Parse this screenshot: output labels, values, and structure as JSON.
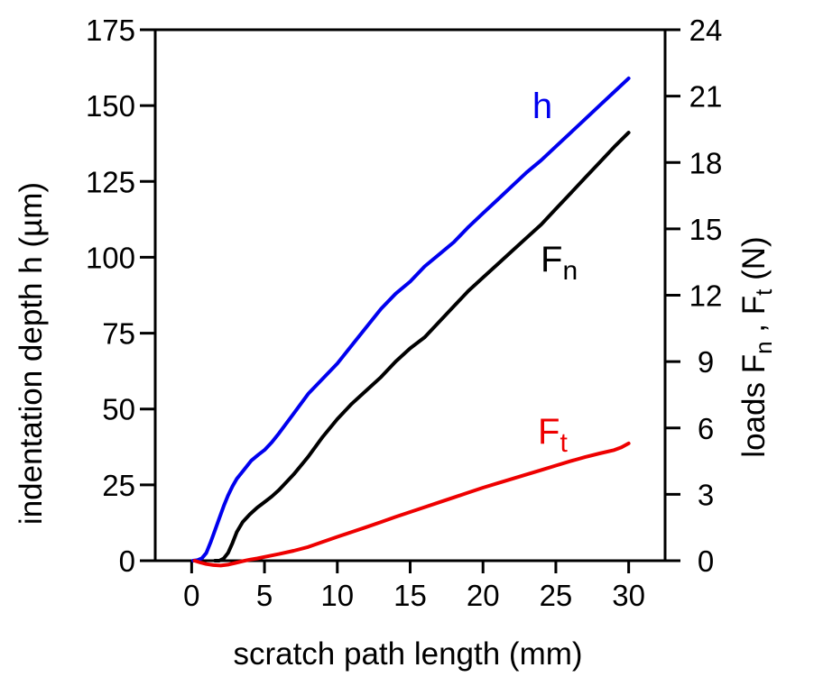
{
  "figure": {
    "background": "#ffffff",
    "axis_color": "#000000"
  },
  "chart_data": {
    "type": "line",
    "title": "",
    "xlabel": "scratch path length (mm)",
    "ylabel_left": "indentation depth  h (µm)",
    "ylabel_right_runs": [
      {
        "t": "loads F"
      },
      {
        "t": "n",
        "sub": true
      },
      {
        "t": " , F"
      },
      {
        "t": "t",
        "sub": true
      },
      {
        "t": "  (N)"
      }
    ],
    "x_axis": {
      "min": -2.5,
      "max": 32.5,
      "ticks": [
        0,
        5,
        10,
        15,
        20,
        25,
        30
      ],
      "grid": false
    },
    "y_axis_left": {
      "min": 0,
      "max": 175,
      "ticks": [
        0,
        25,
        50,
        75,
        100,
        125,
        150,
        175
      ],
      "grid": false
    },
    "y_axis_right": {
      "min": 0,
      "max": 24,
      "ticks": [
        0,
        3,
        6,
        9,
        12,
        15,
        18,
        21,
        24
      ],
      "grid": false
    },
    "legend": "inline curve labels",
    "series": [
      {
        "name": "h",
        "axis": "left",
        "unit": "µm",
        "color": "#0000ee",
        "label_runs": [
          {
            "t": "h"
          }
        ],
        "points": [
          [
            0.1,
            0
          ],
          [
            0.4,
            0.2
          ],
          [
            0.7,
            0.8
          ],
          [
            1.0,
            2.5
          ],
          [
            1.3,
            6
          ],
          [
            1.6,
            10
          ],
          [
            1.9,
            14
          ],
          [
            2.2,
            18
          ],
          [
            2.5,
            21.5
          ],
          [
            2.8,
            24.5
          ],
          [
            3.1,
            27
          ],
          [
            3.6,
            30
          ],
          [
            4.1,
            33
          ],
          [
            4.6,
            35
          ],
          [
            5,
            36.5
          ],
          [
            5.5,
            39
          ],
          [
            6,
            42
          ],
          [
            7,
            48.5
          ],
          [
            8,
            55
          ],
          [
            9,
            60
          ],
          [
            10,
            65
          ],
          [
            11,
            71
          ],
          [
            12,
            77
          ],
          [
            13,
            83
          ],
          [
            14,
            88
          ],
          [
            15,
            92
          ],
          [
            16,
            97
          ],
          [
            17,
            101
          ],
          [
            18,
            105
          ],
          [
            19,
            110
          ],
          [
            20,
            114.5
          ],
          [
            21,
            119
          ],
          [
            22,
            123.5
          ],
          [
            23,
            128
          ],
          [
            24,
            132
          ],
          [
            25,
            136.5
          ],
          [
            26,
            141
          ],
          [
            27,
            145.5
          ],
          [
            28,
            150
          ],
          [
            29,
            154.5
          ],
          [
            30,
            159
          ]
        ]
      },
      {
        "name": "Fn",
        "axis": "right",
        "unit": "N",
        "color": "#000000",
        "label_runs": [
          {
            "t": "F"
          },
          {
            "t": "n",
            "sub": true
          }
        ],
        "points": [
          [
            1.6,
            0
          ],
          [
            1.9,
            0
          ],
          [
            2.2,
            0.1
          ],
          [
            2.5,
            0.35
          ],
          [
            2.8,
            0.8
          ],
          [
            3.1,
            1.3
          ],
          [
            3.5,
            1.75
          ],
          [
            4,
            2.1
          ],
          [
            4.5,
            2.4
          ],
          [
            5,
            2.65
          ],
          [
            5.5,
            2.9
          ],
          [
            6,
            3.2
          ],
          [
            7,
            3.9
          ],
          [
            8,
            4.7
          ],
          [
            9,
            5.6
          ],
          [
            10,
            6.4
          ],
          [
            11,
            7.1
          ],
          [
            12,
            7.7
          ],
          [
            13,
            8.3
          ],
          [
            14,
            9.0
          ],
          [
            15,
            9.6
          ],
          [
            16,
            10.1
          ],
          [
            17,
            10.8
          ],
          [
            18,
            11.5
          ],
          [
            19,
            12.2
          ],
          [
            20,
            12.8
          ],
          [
            21,
            13.4
          ],
          [
            22,
            14.0
          ],
          [
            23,
            14.6
          ],
          [
            24,
            15.2
          ],
          [
            25,
            15.9
          ],
          [
            26,
            16.6
          ],
          [
            27,
            17.3
          ],
          [
            28,
            18.0
          ],
          [
            29,
            18.7
          ],
          [
            30,
            19.35
          ]
        ]
      },
      {
        "name": "Ft",
        "axis": "right",
        "unit": "N",
        "color": "#ee0000",
        "label_runs": [
          {
            "t": "F"
          },
          {
            "t": "t",
            "sub": true
          }
        ],
        "points": [
          [
            0.2,
            0
          ],
          [
            0.6,
            -0.08
          ],
          [
            1.0,
            -0.15
          ],
          [
            1.5,
            -0.2
          ],
          [
            2.0,
            -0.22
          ],
          [
            2.5,
            -0.18
          ],
          [
            3.0,
            -0.1
          ],
          [
            3.5,
            -0.02
          ],
          [
            4.0,
            0.05
          ],
          [
            4.5,
            0.1
          ],
          [
            5,
            0.17
          ],
          [
            6,
            0.3
          ],
          [
            7,
            0.45
          ],
          [
            8,
            0.62
          ],
          [
            9,
            0.85
          ],
          [
            10,
            1.08
          ],
          [
            11,
            1.3
          ],
          [
            12,
            1.52
          ],
          [
            13,
            1.75
          ],
          [
            14,
            1.98
          ],
          [
            15,
            2.2
          ],
          [
            16,
            2.42
          ],
          [
            17,
            2.64
          ],
          [
            18,
            2.86
          ],
          [
            19,
            3.08
          ],
          [
            20,
            3.3
          ],
          [
            21,
            3.5
          ],
          [
            22,
            3.7
          ],
          [
            23,
            3.9
          ],
          [
            24,
            4.1
          ],
          [
            25,
            4.3
          ],
          [
            26,
            4.5
          ],
          [
            27,
            4.68
          ],
          [
            28,
            4.85
          ],
          [
            29,
            5.0
          ],
          [
            29.5,
            5.12
          ],
          [
            30,
            5.3
          ]
        ]
      }
    ]
  }
}
